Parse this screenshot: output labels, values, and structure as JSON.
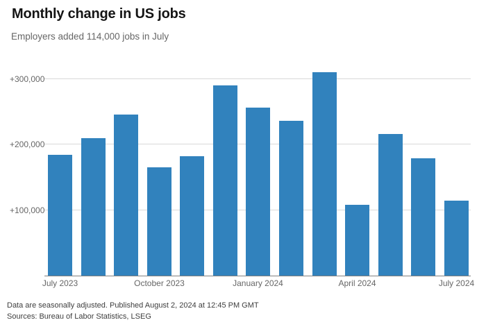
{
  "header": {
    "title": "Monthly change in US jobs",
    "subtitle": "Employers added 114,000 jobs in July"
  },
  "footer": {
    "note": "Data are seasonally adjusted. Published August 2, 2024 at 12:45 PM GMT",
    "sources": "Sources: Bureau of Labor Statistics, LSEG"
  },
  "chart_data": {
    "type": "bar",
    "title": "Monthly change in US jobs",
    "subtitle": "Employers added 114,000 jobs in July",
    "categories": [
      "July 2023",
      "August 2023",
      "September 2023",
      "October 2023",
      "November 2023",
      "December 2023",
      "January 2024",
      "February 2024",
      "March 2024",
      "April 2024",
      "May 2024",
      "June 2024",
      "July 2024"
    ],
    "values": [
      184000,
      210000,
      246000,
      165000,
      182000,
      290000,
      256000,
      236000,
      310000,
      108000,
      216000,
      179000,
      114000
    ],
    "y_ticks": [
      {
        "value": 100000,
        "label": "+100,000"
      },
      {
        "value": 200000,
        "label": "+200,000"
      },
      {
        "value": 300000,
        "label": "+300,000"
      }
    ],
    "x_ticks": [
      {
        "index": 0,
        "label": "July 2023"
      },
      {
        "index": 3,
        "label": "October 2023"
      },
      {
        "index": 6,
        "label": "January 2024"
      },
      {
        "index": 9,
        "label": "April 2024"
      },
      {
        "index": 12,
        "label": "July 2024"
      }
    ],
    "xlabel": "",
    "ylabel": "",
    "ylim": [
      0,
      324000
    ],
    "grid": true,
    "legend": "none",
    "bar_color": "#3182bd",
    "gridline_color": "#d9d9d9",
    "axis_line_color": "#808080",
    "tick_label_color": "#666666"
  }
}
